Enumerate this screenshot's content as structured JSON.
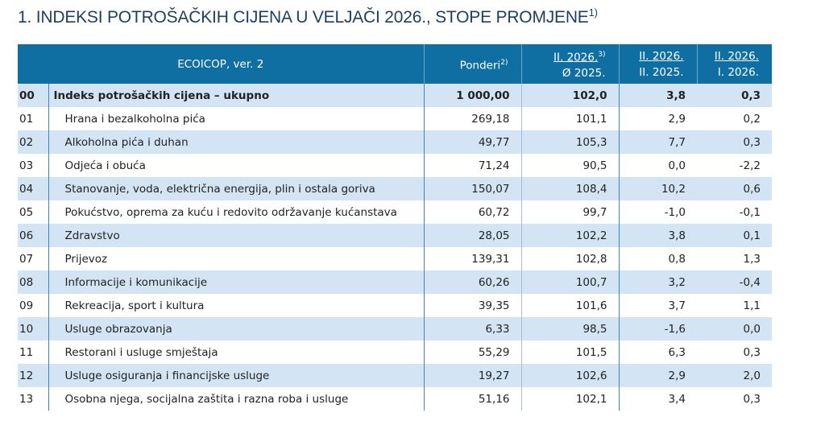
{
  "title": "1. INDEKSI POTROŠAČKIH CIJENA U VELJAČI 2026., STOPE PROMJENE",
  "title_sup": "1)",
  "header": {
    "ecoicop": "ECOICOP, ver. 2",
    "ponderi": "Ponderi",
    "ponderi_sup": "2)",
    "c3_top": "II. 2026.",
    "c3_sup": "3)",
    "c3_bottom": "Ø 2025.",
    "c4_top": "II. 2026.",
    "c4_bottom": "II. 2025.",
    "c5_top": "II. 2026.",
    "c5_bottom": "I. 2026."
  },
  "rows": [
    {
      "code": "00",
      "name": "Indeks potrošačkih cijena – ukupno",
      "ponder": "1 000,00",
      "idx": "102,0",
      "yoy": "3,8",
      "mom": "0,3"
    },
    {
      "code": "01",
      "name": "Hrana i bezalkoholna pića",
      "ponder": "269,18",
      "idx": "101,1",
      "yoy": "2,9",
      "mom": "0,2"
    },
    {
      "code": "02",
      "name": "Alkoholna pića i duhan",
      "ponder": "49,77",
      "idx": "105,3",
      "yoy": "7,7",
      "mom": "0,3"
    },
    {
      "code": "03",
      "name": "Odjeća i obuća",
      "ponder": "71,24",
      "idx": "90,5",
      "yoy": "0,0",
      "mom": "-2,2"
    },
    {
      "code": "04",
      "name": "Stanovanje, voda, električna energija, plin i ostala goriva",
      "ponder": "150,07",
      "idx": "108,4",
      "yoy": "10,2",
      "mom": "0,6"
    },
    {
      "code": "05",
      "name": "Pokućstvo, oprema za kuću i redovito održavanje kućanstava",
      "ponder": "60,72",
      "idx": "99,7",
      "yoy": "-1,0",
      "mom": "-0,1"
    },
    {
      "code": "06",
      "name": "Zdravstvo",
      "ponder": "28,05",
      "idx": "102,2",
      "yoy": "3,8",
      "mom": "0,1"
    },
    {
      "code": "07",
      "name": "Prijevoz",
      "ponder": "139,31",
      "idx": "102,8",
      "yoy": "0,8",
      "mom": "1,3"
    },
    {
      "code": "08",
      "name": "Informacije i komunikacije",
      "ponder": "60,26",
      "idx": "100,7",
      "yoy": "3,2",
      "mom": "-0,4"
    },
    {
      "code": "09",
      "name": "Rekreacija, sport i kultura",
      "ponder": "39,35",
      "idx": "101,6",
      "yoy": "3,7",
      "mom": "1,1"
    },
    {
      "code": "10",
      "name": "Usluge obrazovanja",
      "ponder": "6,33",
      "idx": "98,5",
      "yoy": "-1,6",
      "mom": "0,0"
    },
    {
      "code": "11",
      "name": "Restorani i usluge smještaja",
      "ponder": "55,29",
      "idx": "101,5",
      "yoy": "6,3",
      "mom": "0,3"
    },
    {
      "code": "12",
      "name": "Usluge osiguranja i financijske usluge",
      "ponder": "19,27",
      "idx": "102,6",
      "yoy": "2,9",
      "mom": "2,0"
    },
    {
      "code": "13",
      "name": "Osobna njega, socijalna zaštita i razna roba i usluge",
      "ponder": "51,16",
      "idx": "102,1",
      "yoy": "3,4",
      "mom": "0,3"
    }
  ]
}
